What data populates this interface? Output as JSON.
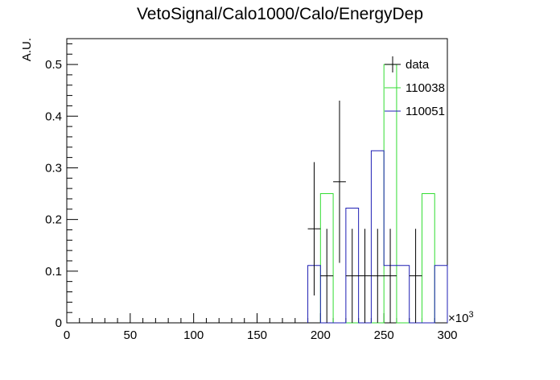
{
  "chart_data": {
    "type": "histogram",
    "title": "VetoSignal/Calo1000/Calo/EnergyDep",
    "xlabel": "",
    "ylabel": "A.U.",
    "x_multiplier_label": "×10",
    "x_multiplier_exponent": "3",
    "xlim": [
      0,
      300
    ],
    "ylim": [
      0,
      0.55
    ],
    "xticks": [
      0,
      50,
      100,
      150,
      200,
      250,
      300
    ],
    "xtick_labels": [
      "0",
      "50",
      "100",
      "150",
      "200",
      "250",
      "300"
    ],
    "yticks": [
      0,
      0.1,
      0.2,
      0.3,
      0.4,
      0.5
    ],
    "ytick_labels": [
      "0",
      "0.1",
      "0.2",
      "0.3",
      "0.4",
      "0.5"
    ],
    "bin_width": 10,
    "legend_position": "top-right",
    "series": [
      {
        "name": "data",
        "kind": "points_with_errors",
        "color": "#000000",
        "points": [
          {
            "x": 195,
            "y": 0.182,
            "err": 0.129
          },
          {
            "x": 205,
            "y": 0.091,
            "err": 0.091
          },
          {
            "x": 215,
            "y": 0.273,
            "err": 0.157
          },
          {
            "x": 225,
            "y": 0.091,
            "err": 0.091
          },
          {
            "x": 235,
            "y": 0.091,
            "err": 0.091
          },
          {
            "x": 245,
            "y": 0.091,
            "err": 0.091
          },
          {
            "x": 255,
            "y": 0.091,
            "err": 0.091
          },
          {
            "x": 265,
            "y": 0.0,
            "err": 0.0
          },
          {
            "x": 275,
            "y": 0.091,
            "err": 0.091
          }
        ]
      },
      {
        "name": "110038",
        "kind": "step",
        "color": "#33dd33",
        "bins": [
          {
            "lo": 200,
            "hi": 210,
            "value": 0.25
          },
          {
            "lo": 210,
            "hi": 250,
            "value": 0.0
          },
          {
            "lo": 250,
            "hi": 260,
            "value": 0.5
          },
          {
            "lo": 260,
            "hi": 280,
            "value": 0.0
          },
          {
            "lo": 280,
            "hi": 290,
            "value": 0.25
          }
        ]
      },
      {
        "name": "110051",
        "kind": "step",
        "color": "#1f1fb4",
        "bins": [
          {
            "lo": 190,
            "hi": 200,
            "value": 0.111
          },
          {
            "lo": 200,
            "hi": 220,
            "value": 0.0
          },
          {
            "lo": 220,
            "hi": 230,
            "value": 0.222
          },
          {
            "lo": 230,
            "hi": 240,
            "value": 0.0
          },
          {
            "lo": 240,
            "hi": 250,
            "value": 0.333
          },
          {
            "lo": 250,
            "hi": 270,
            "value": 0.111
          },
          {
            "lo": 270,
            "hi": 290,
            "value": 0.0
          },
          {
            "lo": 290,
            "hi": 300,
            "value": 0.111
          }
        ]
      }
    ]
  }
}
